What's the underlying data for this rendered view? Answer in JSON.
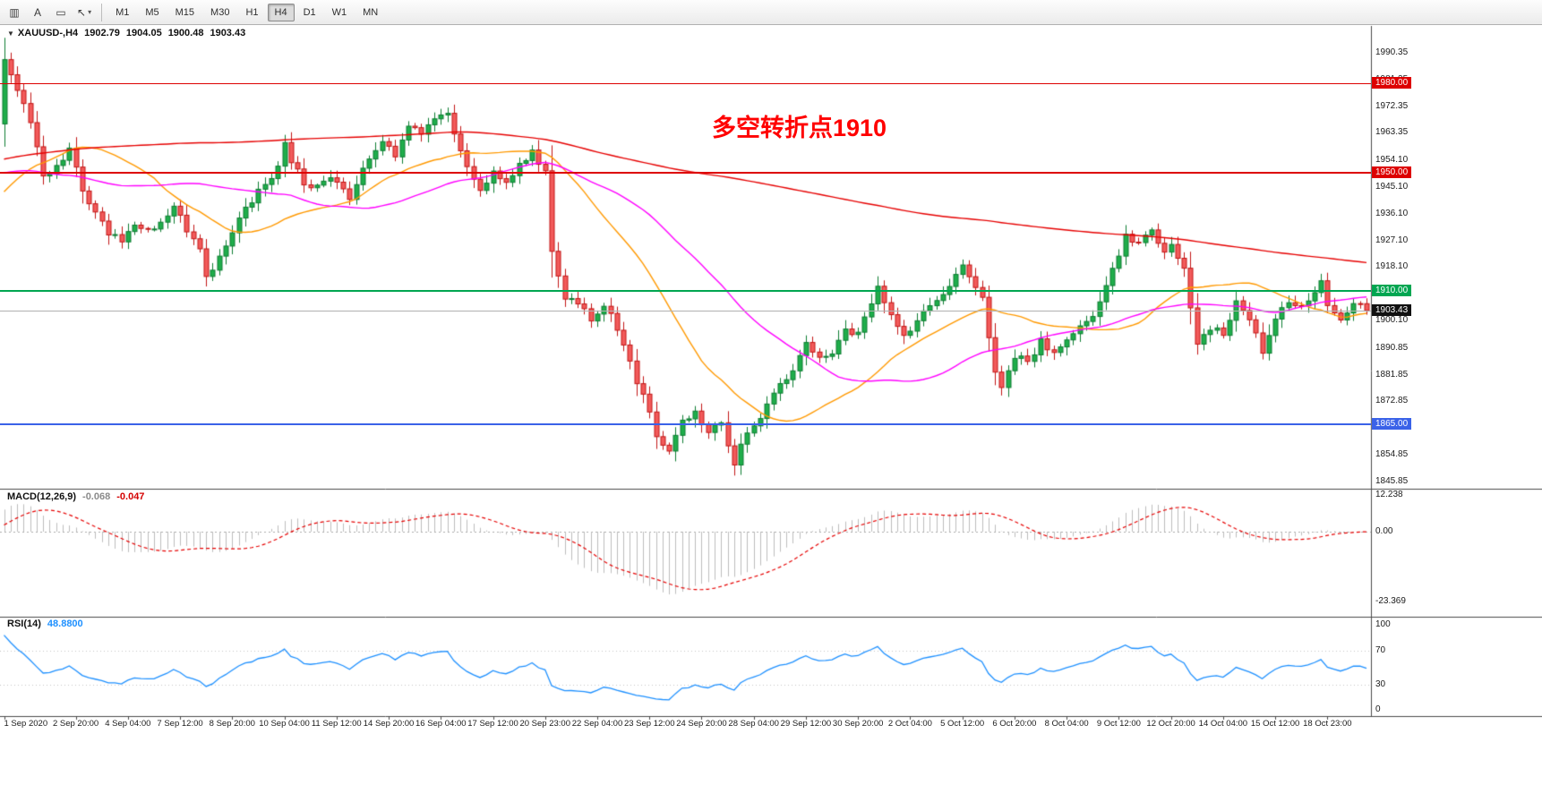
{
  "toolbar": {
    "tools": [
      {
        "name": "chart-bars-tool-button",
        "glyph": "▥"
      },
      {
        "name": "text-label-tool-button",
        "glyph": "A"
      },
      {
        "name": "objects-list-tool-button",
        "glyph": "▭"
      },
      {
        "name": "cursor-tool-button",
        "glyph": "↖",
        "has_dropdown": true
      }
    ],
    "dropdown_glyph": "▾",
    "timeframes": [
      "M1",
      "M5",
      "M15",
      "M30",
      "H1",
      "H4",
      "D1",
      "W1",
      "MN"
    ],
    "active_timeframe": "H4"
  },
  "main_chart": {
    "header": {
      "triangle": "▼",
      "symbol": "XAUUSD-,H4",
      "open": "1902.79",
      "high": "1904.05",
      "low": "1900.48",
      "close": "1903.43"
    },
    "annotation": {
      "text": "多空转折点1910",
      "color": "#FF0000"
    }
  },
  "macd_panel": {
    "label": "MACD(12,26,9)",
    "main_value": "-0.068",
    "signal_value": "-0.047"
  },
  "rsi_panel": {
    "label": "RSI(14)",
    "value": "48.8800"
  },
  "chart_data": {
    "type": "candlestick",
    "symbol": "XAUUSD",
    "timeframe": "H4",
    "title": "XAUUSD-,H4",
    "ohlc_current": {
      "open": 1902.79,
      "high": 1904.05,
      "low": 1900.48,
      "close": 1903.43
    },
    "price_axis": {
      "min": 1845.85,
      "max": 1990.35,
      "labels": [
        [
          "1990.35",
          1990.35
        ],
        [
          "1981.35",
          1981.35
        ],
        [
          "1972.35",
          1972.35
        ],
        [
          "1963.35",
          1963.35
        ],
        [
          "1954.10",
          1954.1
        ],
        [
          "1945.10",
          1945.1
        ],
        [
          "1936.10",
          1936.1
        ],
        [
          "1927.10",
          1927.1
        ],
        [
          "1918.10",
          1918.1
        ],
        [
          "1900.10",
          1900.1
        ],
        [
          "1890.85",
          1890.85
        ],
        [
          "1881.85",
          1881.85
        ],
        [
          "1872.85",
          1872.85
        ],
        [
          "1854.85",
          1854.85
        ],
        [
          "1845.85",
          1845.85
        ]
      ]
    },
    "hlines": [
      {
        "name": "resistance-1980",
        "price": 1980.0,
        "label": "1980.00",
        "color": "#dd0000",
        "thickness": 1
      },
      {
        "name": "resistance-1950",
        "price": 1950.0,
        "label": "1950.00",
        "color": "#dd0000",
        "thickness": 2
      },
      {
        "name": "pivot-1910",
        "price": 1910.0,
        "label": "1910.00",
        "color": "#00a651",
        "thickness": 2
      },
      {
        "name": "support-1865",
        "price": 1865.0,
        "label": "1865.00",
        "color": "#3a62e8",
        "thickness": 2
      }
    ],
    "current_price": {
      "value": 1903.43,
      "label": "1903.43",
      "line_color": "#b0b0b0",
      "box_color": "#111111"
    },
    "moving_averages": [
      {
        "name": "ma-fast-orange",
        "period": 24,
        "color": "#ff9900"
      },
      {
        "name": "ma-mid-magenta",
        "period": 45,
        "color": "#ff00ff"
      },
      {
        "name": "ma-slow-red",
        "period": 240,
        "color": "#e60000"
      }
    ],
    "candles": {
      "count": 210,
      "up_fill": "#1fae4b",
      "up_border": "#0c7c31",
      "down_fill": "#f25b5b",
      "down_border": "#c21515",
      "pre_waypoints": [
        [
          -240,
          1882
        ],
        [
          -220,
          1905
        ],
        [
          -190,
          1928
        ],
        [
          -171,
          1938
        ],
        [
          -165,
          1995
        ],
        [
          -150,
          2045
        ],
        [
          -140,
          1975
        ],
        [
          -130,
          1935
        ],
        [
          -120,
          1985
        ],
        [
          -105,
          2005
        ],
        [
          -90,
          1955
        ],
        [
          -75,
          1945
        ],
        [
          -60,
          1975
        ],
        [
          -45,
          1968
        ],
        [
          -31,
          1962
        ],
        [
          -25,
          1930
        ],
        [
          -15,
          1928
        ],
        [
          -5,
          1958
        ],
        [
          -1,
          1966
        ]
      ],
      "waypoints": [
        [
          0,
          1989
        ],
        [
          2,
          1977
        ],
        [
          4,
          1968
        ],
        [
          6,
          1948
        ],
        [
          8,
          1952
        ],
        [
          10,
          1958
        ],
        [
          12,
          1944
        ],
        [
          14,
          1936
        ],
        [
          16,
          1930
        ],
        [
          18,
          1926
        ],
        [
          20,
          1933
        ],
        [
          22,
          1930
        ],
        [
          24,
          1934
        ],
        [
          26,
          1938
        ],
        [
          28,
          1931
        ],
        [
          30,
          1924
        ],
        [
          31,
          1914
        ],
        [
          33,
          1922
        ],
        [
          35,
          1930
        ],
        [
          37,
          1938
        ],
        [
          40,
          1946
        ],
        [
          42,
          1952
        ],
        [
          43,
          1959
        ],
        [
          45,
          1950
        ],
        [
          47,
          1944
        ],
        [
          50,
          1948
        ],
        [
          53,
          1941
        ],
        [
          55,
          1952
        ],
        [
          58,
          1960
        ],
        [
          60,
          1956
        ],
        [
          62,
          1966
        ],
        [
          64,
          1963
        ],
        [
          66,
          1969
        ],
        [
          68,
          1971
        ],
        [
          69,
          1962
        ],
        [
          71,
          1952
        ],
        [
          73,
          1943
        ],
        [
          75,
          1951
        ],
        [
          77,
          1947
        ],
        [
          79,
          1953
        ],
        [
          81,
          1957
        ],
        [
          83,
          1950
        ],
        [
          84,
          1924
        ],
        [
          86,
          1908
        ],
        [
          88,
          1906
        ],
        [
          90,
          1900
        ],
        [
          92,
          1906
        ],
        [
          94,
          1897
        ],
        [
          95,
          1893
        ],
        [
          97,
          1880
        ],
        [
          99,
          1870
        ],
        [
          100,
          1862
        ],
        [
          102,
          1856
        ],
        [
          104,
          1866
        ],
        [
          106,
          1870
        ],
        [
          108,
          1862
        ],
        [
          110,
          1866
        ],
        [
          112,
          1852
        ],
        [
          113,
          1858
        ],
        [
          115,
          1864
        ],
        [
          117,
          1872
        ],
        [
          119,
          1878
        ],
        [
          121,
          1884
        ],
        [
          123,
          1893
        ],
        [
          125,
          1887
        ],
        [
          127,
          1890
        ],
        [
          129,
          1898
        ],
        [
          131,
          1895
        ],
        [
          133,
          1906
        ],
        [
          134,
          1911
        ],
        [
          136,
          1903
        ],
        [
          138,
          1895
        ],
        [
          140,
          1900
        ],
        [
          142,
          1906
        ],
        [
          144,
          1910
        ],
        [
          145,
          1912
        ],
        [
          147,
          1918
        ],
        [
          149,
          1912
        ],
        [
          150,
          1907
        ],
        [
          152,
          1882
        ],
        [
          153,
          1877
        ],
        [
          155,
          1888
        ],
        [
          157,
          1886
        ],
        [
          159,
          1893
        ],
        [
          161,
          1889
        ],
        [
          163,
          1893
        ],
        [
          165,
          1898
        ],
        [
          167,
          1902
        ],
        [
          170,
          1917
        ],
        [
          172,
          1928
        ],
        [
          174,
          1926
        ],
        [
          176,
          1930
        ],
        [
          178,
          1922
        ],
        [
          179,
          1925
        ],
        [
          181,
          1917
        ],
        [
          183,
          1893
        ],
        [
          185,
          1898
        ],
        [
          187,
          1896
        ],
        [
          189,
          1906
        ],
        [
          191,
          1901
        ],
        [
          193,
          1890
        ],
        [
          195,
          1900
        ],
        [
          197,
          1907
        ],
        [
          199,
          1904
        ],
        [
          201,
          1909
        ],
        [
          202,
          1913
        ],
        [
          203,
          1906
        ],
        [
          205,
          1900
        ],
        [
          207,
          1906
        ],
        [
          209,
          1903.43
        ]
      ]
    },
    "time_axis": {
      "labels": [
        [
          "1 Sep 2020",
          0
        ],
        [
          "2 Sep 20:00",
          11
        ],
        [
          "4 Sep 04:00",
          19
        ],
        [
          "7 Sep 12:00",
          27
        ],
        [
          "8 Sep 20:00",
          35
        ],
        [
          "10 Sep 04:00",
          43
        ],
        [
          "11 Sep 12:00",
          51
        ],
        [
          "14 Sep 20:00",
          59
        ],
        [
          "16 Sep 04:00",
          67
        ],
        [
          "17 Sep 12:00",
          75
        ],
        [
          "20 Sep 23:00",
          83
        ],
        [
          "22 Sep 04:00",
          91
        ],
        [
          "23 Sep 12:00",
          99
        ],
        [
          "24 Sep 20:00",
          107
        ],
        [
          "28 Sep 04:00",
          115
        ],
        [
          "29 Sep 12:00",
          123
        ],
        [
          "30 Sep 20:00",
          131
        ],
        [
          "2 Oct 04:00",
          139
        ],
        [
          "5 Oct 12:00",
          147
        ],
        [
          "6 Oct 20:00",
          155
        ],
        [
          "8 Oct 04:00",
          163
        ],
        [
          "9 Oct 12:00",
          171
        ],
        [
          "12 Oct 20:00",
          179
        ],
        [
          "14 Oct 04:00",
          187
        ],
        [
          "15 Oct 12:00",
          195
        ],
        [
          "18 Oct 23:00",
          203
        ]
      ]
    },
    "macd": {
      "fast": 12,
      "slow": 26,
      "signal_period": 9,
      "histogram_color": "#bdbdbd",
      "signal_color": "#e60000",
      "scale_labels": [
        [
          "12.238",
          12.238
        ],
        [
          "0.00",
          0
        ],
        [
          "-23.369",
          -23.369
        ]
      ]
    },
    "rsi": {
      "period": 14,
      "color": "#1e90ff",
      "scale_labels": [
        [
          "100",
          100
        ],
        [
          "70",
          70
        ],
        [
          "30",
          30
        ],
        [
          "0",
          0
        ]
      ],
      "guide_levels": [
        70,
        30
      ]
    }
  }
}
